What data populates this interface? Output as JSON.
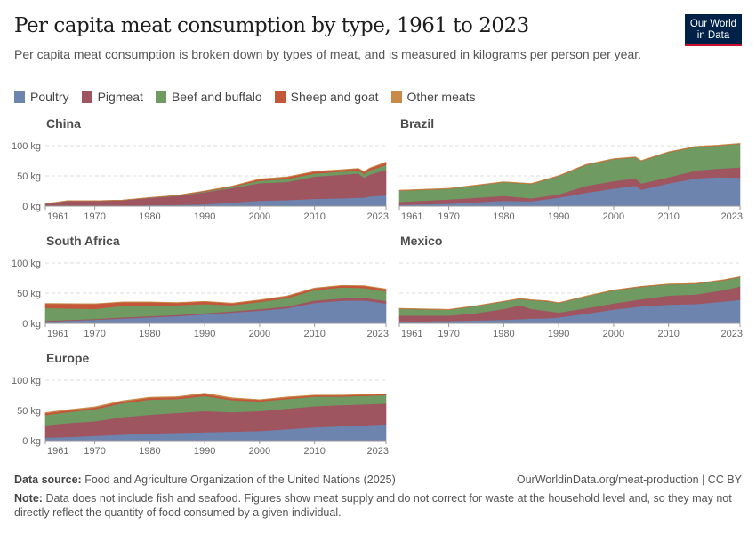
{
  "header": {
    "title": "Per capita meat consumption by type, 1961 to 2023",
    "subtitle": "Per capita meat consumption is broken down by types of meat, and is measured in kilograms per person per year.",
    "logo_text": "Our World in Data"
  },
  "legend": [
    {
      "label": "Poultry",
      "color": "#6d84ae"
    },
    {
      "label": "Pigmeat",
      "color": "#9e5560"
    },
    {
      "label": "Beef and buffalo",
      "color": "#6f9a62"
    },
    {
      "label": "Sheep and goat",
      "color": "#c4563a"
    },
    {
      "label": "Other meats",
      "color": "#c88a46"
    }
  ],
  "footer": {
    "source_label": "Data source:",
    "source": "Food and Agriculture Organization of the United Nations (2025)",
    "url": "OurWorldinData.org/meat-production | CC BY",
    "note_label": "Note:",
    "note": "Data does not include fish and seafood. Figures show meat supply and do not correct for waste at the household level and, so they may not directly reflect the quantity of food consumed by a given individual."
  },
  "chart_data": [
    {
      "type": "area",
      "stacked": true,
      "title": "China",
      "ylim": [
        0,
        100
      ],
      "unit": "kg",
      "yticks": [
        "0 kg",
        "50 kg",
        "100 kg"
      ],
      "xticks": [
        "1961",
        "1970",
        "1980",
        "1990",
        "2000",
        "2010",
        "2023"
      ],
      "xlim": [
        1961,
        2023
      ],
      "grid": true,
      "x": [
        1961,
        1965,
        1970,
        1975,
        1980,
        1985,
        1990,
        1995,
        2000,
        2005,
        2010,
        2015,
        2018,
        2019,
        2020,
        2023
      ],
      "series": [
        {
          "name": "Poultry",
          "values": [
            1,
            1,
            1,
            1,
            1.5,
            2,
            3,
            6,
            9,
            10,
            12,
            13,
            14,
            14,
            16,
            18
          ]
        },
        {
          "name": "Pigmeat",
          "values": [
            2.5,
            7.5,
            7.5,
            8.5,
            12,
            15,
            20,
            24,
            29,
            30,
            37,
            39,
            40,
            33,
            36,
            42
          ]
        },
        {
          "name": "Beef and buffalo",
          "values": [
            0.2,
            0.2,
            0.2,
            0.2,
            0.3,
            0.5,
            1,
            2,
            4,
            5,
            5,
            5,
            5,
            6,
            7,
            8
          ]
        },
        {
          "name": "Sheep and goat",
          "values": [
            0.3,
            0.3,
            0.3,
            0.3,
            0.5,
            0.5,
            1,
            1,
            2.5,
            3,
            3,
            3,
            3,
            3.5,
            3.5,
            4
          ]
        },
        {
          "name": "Other meats",
          "values": [
            0,
            0,
            0,
            0,
            0,
            0,
            0.2,
            0.3,
            0.5,
            0.5,
            0.5,
            0.5,
            0.5,
            0.5,
            0.5,
            1
          ]
        }
      ]
    },
    {
      "type": "area",
      "stacked": true,
      "title": "Brazil",
      "ylim": [
        0,
        100
      ],
      "unit": "kg",
      "yticks": [],
      "xticks": [
        "1961",
        "1970",
        "1980",
        "1990",
        "2000",
        "2010",
        "2023"
      ],
      "xlim": [
        1961,
        2023
      ],
      "grid": true,
      "x": [
        1961,
        1970,
        1980,
        1985,
        1990,
        1995,
        2000,
        2004,
        2005,
        2010,
        2015,
        2019,
        2023
      ],
      "series": [
        {
          "name": "Poultry",
          "values": [
            2,
            4,
            9,
            8,
            14,
            22,
            29,
            34,
            27,
            37.5,
            46,
            48,
            47
          ]
        },
        {
          "name": "Pigmeat",
          "values": [
            5,
            7,
            8,
            5,
            5.5,
            11.5,
            12.5,
            12,
            10.5,
            10.5,
            13,
            14,
            17
          ]
        },
        {
          "name": "Beef and buffalo",
          "values": [
            18.5,
            17.5,
            22.5,
            23.5,
            30,
            34.5,
            36,
            34.5,
            37,
            41,
            39,
            38,
            39
          ]
        },
        {
          "name": "Sheep and goat",
          "values": [
            0.5,
            0.5,
            0.5,
            0.5,
            0.5,
            0.5,
            0.5,
            0.5,
            0.5,
            0.5,
            0.5,
            0.5,
            0.5
          ]
        },
        {
          "name": "Other meats",
          "values": [
            0.5,
            0.5,
            0.5,
            0.5,
            0.5,
            0.5,
            0.5,
            0.5,
            0.5,
            0.5,
            0.5,
            0.5,
            0.5
          ]
        }
      ]
    },
    {
      "type": "area",
      "stacked": true,
      "title": "South Africa",
      "ylim": [
        0,
        100
      ],
      "unit": "kg",
      "yticks": [
        "0 kg",
        "50 kg",
        "100 kg"
      ],
      "xticks": [
        "1961",
        "1970",
        "1980",
        "1990",
        "2000",
        "2010",
        "2023"
      ],
      "xlim": [
        1961,
        2023
      ],
      "grid": true,
      "x": [
        1961,
        1970,
        1975,
        1980,
        1985,
        1990,
        1995,
        2000,
        2005,
        2010,
        2015,
        2019,
        2023
      ],
      "series": [
        {
          "name": "Poultry",
          "values": [
            3,
            6,
            8,
            10,
            12,
            15,
            18,
            21,
            25,
            34,
            37.5,
            38,
            33
          ]
        },
        {
          "name": "Pigmeat",
          "values": [
            1.5,
            1.5,
            2,
            2,
            2,
            2,
            2,
            2.5,
            3,
            4,
            4,
            4.5,
            4
          ]
        },
        {
          "name": "Beef and buffalo",
          "values": [
            21,
            16.5,
            19,
            18,
            16,
            15,
            10,
            12,
            14,
            17,
            18,
            16,
            16
          ]
        },
        {
          "name": "Sheep and goat",
          "values": [
            7,
            8,
            6,
            5,
            4,
            4,
            3,
            3,
            3,
            3,
            3,
            3.5,
            3.5
          ]
        },
        {
          "name": "Other meats",
          "values": [
            0.5,
            0.5,
            0.5,
            0.5,
            0.5,
            0.5,
            0.5,
            0.5,
            0.5,
            0.5,
            0.5,
            0.5,
            0.5
          ]
        }
      ]
    },
    {
      "type": "area",
      "stacked": true,
      "title": "Mexico",
      "ylim": [
        0,
        100
      ],
      "unit": "kg",
      "yticks": [],
      "xticks": [
        "1961",
        "1970",
        "1980",
        "1990",
        "2000",
        "2010",
        "2023"
      ],
      "xlim": [
        1961,
        2023
      ],
      "grid": true,
      "x": [
        1961,
        1970,
        1975,
        1980,
        1983,
        1985,
        1988,
        1990,
        1995,
        2000,
        2005,
        2010,
        2015,
        2020,
        2023
      ],
      "series": [
        {
          "name": "Poultry",
          "values": [
            3,
            4,
            5,
            6,
            7,
            8,
            8.5,
            10,
            16,
            23,
            28,
            31,
            32,
            36,
            39
          ]
        },
        {
          "name": "Pigmeat",
          "values": [
            10,
            9,
            12,
            18,
            23,
            16,
            12,
            8,
            9,
            10,
            12,
            15,
            16,
            19,
            22
          ]
        },
        {
          "name": "Beef and buffalo",
          "values": [
            11,
            9.5,
            11.5,
            12,
            10.5,
            14.5,
            16,
            15.5,
            19.5,
            21.5,
            20.5,
            18.5,
            17.5,
            16.5,
            15.5
          ]
        },
        {
          "name": "Sheep and goat",
          "values": [
            0.5,
            0.5,
            0.5,
            0.5,
            0.5,
            0.5,
            0.5,
            0.5,
            0.5,
            0.5,
            0.5,
            0.5,
            0.5,
            0.5,
            0.5
          ]
        },
        {
          "name": "Other meats",
          "values": [
            0.3,
            0.3,
            0.3,
            0.3,
            0.3,
            0.3,
            0.3,
            0.3,
            0.3,
            0.3,
            0.3,
            0.3,
            0.3,
            0.3,
            0.3
          ]
        }
      ]
    },
    {
      "type": "area",
      "stacked": true,
      "title": "Europe",
      "ylim": [
        0,
        100
      ],
      "unit": "kg",
      "yticks": [
        "0 kg",
        "50 kg",
        "100 kg"
      ],
      "xticks": [
        "1961",
        "1970",
        "1980",
        "1990",
        "2000",
        "2010",
        "2023"
      ],
      "xlim": [
        1961,
        2023
      ],
      "grid": true,
      "x": [
        1961,
        1965,
        1970,
        1975,
        1980,
        1985,
        1990,
        1995,
        2000,
        2005,
        2010,
        2015,
        2023
      ],
      "series": [
        {
          "name": "Poultry",
          "values": [
            5,
            6,
            8,
            10,
            12,
            13,
            14,
            15,
            16,
            19,
            22,
            24,
            27
          ]
        },
        {
          "name": "Pigmeat",
          "values": [
            20.5,
            23,
            24,
            29,
            31,
            33,
            35,
            32,
            33,
            34,
            35,
            35,
            34.5
          ]
        },
        {
          "name": "Beef and buffalo",
          "values": [
            17,
            18,
            20,
            23,
            25,
            23,
            25,
            20,
            16,
            16,
            16,
            14,
            14
          ]
        },
        {
          "name": "Sheep and goat",
          "values": [
            3,
            3,
            3,
            3,
            3,
            3,
            3,
            3,
            2.5,
            2.5,
            2,
            2,
            1.5
          ]
        },
        {
          "name": "Other meats",
          "values": [
            1,
            1,
            1,
            1,
            1,
            1,
            1.5,
            1,
            0.5,
            1,
            0.5,
            0.5,
            0.5
          ]
        }
      ]
    }
  ]
}
